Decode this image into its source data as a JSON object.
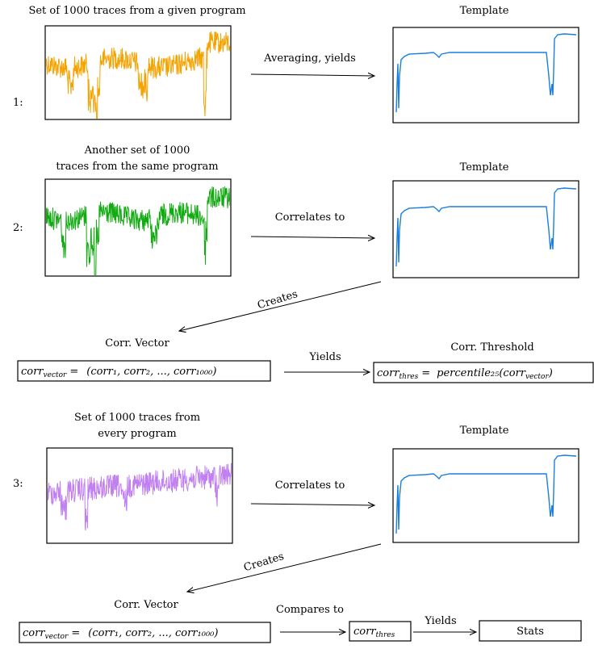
{
  "colors": {
    "template": "#1a7fe0",
    "step1_traces": "#f5a300",
    "step2_traces": "#11aa11",
    "step3_traces": "#c080f0"
  },
  "step1": {
    "number": "1:",
    "traces_title": "Set of 1000 traces from a given program",
    "arrow_label": "Averaging, yields",
    "template_title": "Template"
  },
  "step2": {
    "number": "2:",
    "traces_title_line1": "Another set of 1000",
    "traces_title_line2": "traces from the same program",
    "arrow_label": "Correlates to",
    "template_title": "Template",
    "creates_label": "Creates",
    "vector_title": "Corr. Vector",
    "vector_lhs": "corr",
    "vector_lhs_sub": "vector",
    "vector_eq": "=",
    "vector_rhs": "(corr₁, corr₂, ..., corr₁₀₀₀)",
    "yields_label": "Yields",
    "threshold_title": "Corr. Threshold",
    "threshold_lhs": "corr",
    "threshold_lhs_sub": "thres",
    "threshold_eq": "=",
    "threshold_rhs": "percentile₂₅(corr",
    "threshold_rhs_sub": "vector",
    "threshold_rhs_close": ")"
  },
  "step3": {
    "number": "3:",
    "traces_title_line1": "Set of 1000 traces from",
    "traces_title_line2": "every program",
    "arrow_label": "Correlates to",
    "template_title": "Template",
    "creates_label": "Creates",
    "vector_title": "Corr. Vector",
    "vector_lhs": "corr",
    "vector_lhs_sub": "vector",
    "vector_eq": "=",
    "vector_rhs": "(corr₁, corr₂, ..., corr₁₀₀₀)",
    "compares_label": "Compares to",
    "thres_lhs": "corr",
    "thres_lhs_sub": "thres",
    "yields_label": "Yields",
    "stats_label": "Stats"
  }
}
